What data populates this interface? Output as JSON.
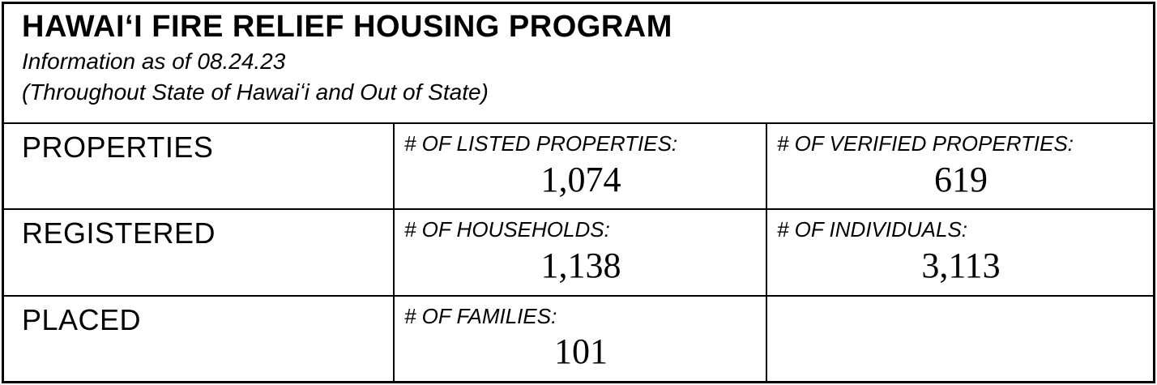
{
  "header": {
    "title": "HAWAIʻI FIRE RELIEF HOUSING PROGRAM",
    "subtitle1": "Information as of 08.24.23",
    "subtitle2": "(Throughout State of Hawaiʻi and Out of State)"
  },
  "table": {
    "rows": [
      {
        "category": "PROPERTIES",
        "cells": [
          {
            "label": "# OF LISTED PROPERTIES:",
            "value": "1,074"
          },
          {
            "label": "# OF VERIFIED PROPERTIES:",
            "value": "619"
          }
        ]
      },
      {
        "category": "REGISTERED",
        "cells": [
          {
            "label": "# OF HOUSEHOLDS:",
            "value": "1,138"
          },
          {
            "label": "# OF INDIVIDUALS:",
            "value": "3,113"
          }
        ]
      },
      {
        "category": "PLACED",
        "cells": [
          {
            "label": "# OF FAMILIES:",
            "value": "101"
          },
          {
            "label": "",
            "value": ""
          }
        ]
      }
    ]
  }
}
